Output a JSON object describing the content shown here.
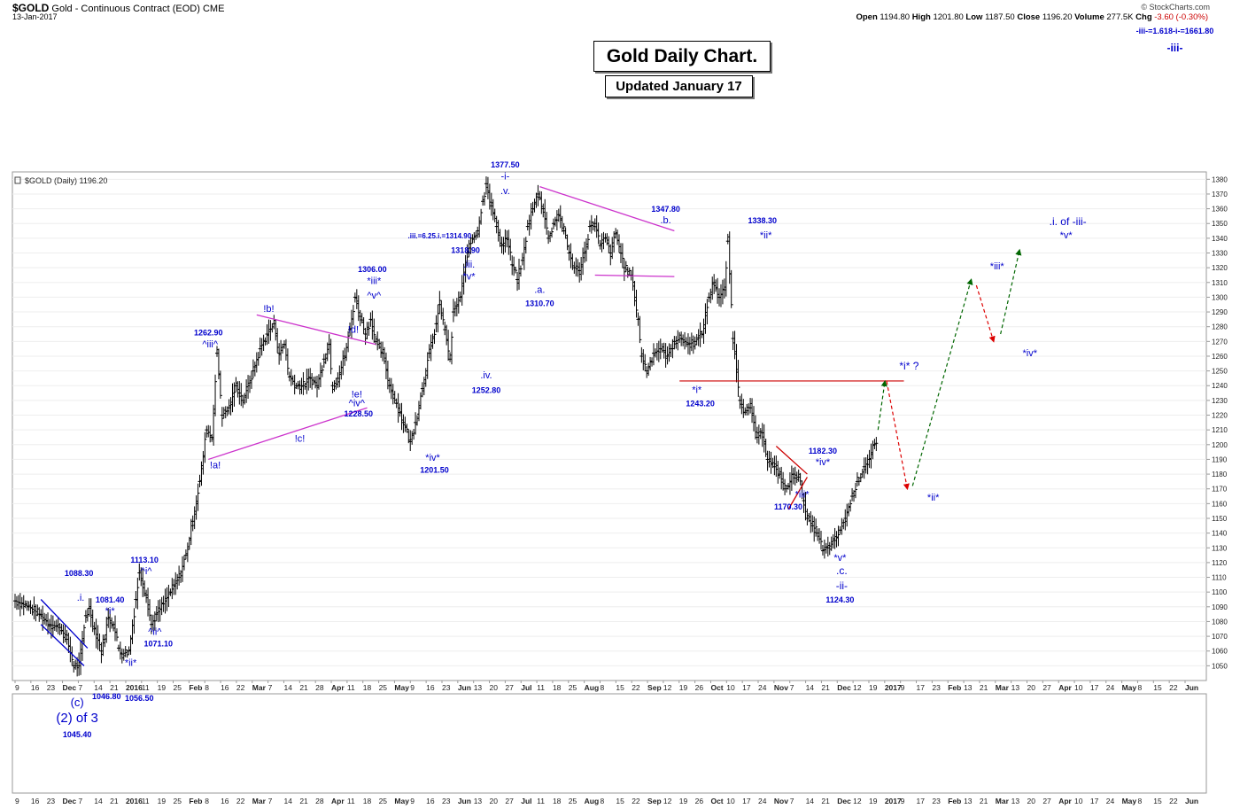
{
  "header": {
    "symbol": "$GOLD",
    "description": "Gold - Continuous Contract (EOD)",
    "exchange": "CME",
    "date": "13-Jan-2017",
    "brand": "© StockCharts.com",
    "open_label": "Open",
    "open": "1194.80",
    "high_label": "High",
    "high": "1201.80",
    "low_label": "Low",
    "low": "1187.50",
    "close_label": "Close",
    "close": "1196.20",
    "volume_label": "Volume",
    "volume": "277.5K",
    "chg_label": "Chg",
    "chg": "-3.60 (-0.30%)"
  },
  "titles": {
    "main": "Gold Daily Chart.",
    "sub": "Updated January 17"
  },
  "chart_data": {
    "type": "ohlc",
    "legend": "$GOLD (Daily) 1196.20",
    "y_range": [
      1040,
      1385
    ],
    "y_ticks": [
      1050,
      1060,
      1070,
      1080,
      1090,
      1100,
      1110,
      1120,
      1130,
      1140,
      1150,
      1160,
      1170,
      1180,
      1190,
      1200,
      1210,
      1220,
      1230,
      1240,
      1250,
      1260,
      1270,
      1280,
      1290,
      1300,
      1310,
      1320,
      1330,
      1340,
      1350,
      1360,
      1370,
      1380
    ],
    "x_ticks": [
      "9",
      "16",
      "23",
      "Dec",
      "7",
      "14",
      "21",
      "2016",
      "11",
      "19",
      "25",
      "Feb",
      "8",
      "16",
      "22",
      "Mar",
      "7",
      "14",
      "21",
      "28",
      "Apr",
      "11",
      "18",
      "25",
      "May",
      "9",
      "16",
      "23",
      "Jun",
      "13",
      "20",
      "27",
      "Jul",
      "11",
      "18",
      "25",
      "Aug",
      "8",
      "15",
      "22",
      "Sep",
      "12",
      "19",
      "26",
      "Oct",
      "10",
      "17",
      "24",
      "Nov",
      "7",
      "14",
      "21",
      "Dec",
      "12",
      "19",
      "2017",
      "9",
      "17",
      "23",
      "Feb",
      "13",
      "21",
      "Mar",
      "13",
      "20",
      "27",
      "Apr",
      "10",
      "17",
      "24",
      "May",
      "8",
      "15",
      "22",
      "Jun"
    ],
    "x_ticks_bold": [
      "Dec",
      "2016",
      "Feb",
      "Mar",
      "Apr",
      "May",
      "Jun",
      "Jul",
      "Aug",
      "Sep",
      "Oct",
      "Nov",
      "2017"
    ],
    "price_path": [
      [
        0,
        1094
      ],
      [
        8,
        1090
      ],
      [
        14,
        1085
      ],
      [
        20,
        1078
      ],
      [
        26,
        1076
      ],
      [
        30,
        1068
      ],
      [
        34,
        1050
      ],
      [
        37,
        1050
      ],
      [
        41,
        1084
      ],
      [
        43,
        1089
      ],
      [
        46,
        1075
      ],
      [
        50,
        1060
      ],
      [
        54,
        1082
      ],
      [
        57,
        1078
      ],
      [
        60,
        1062
      ],
      [
        62,
        1058
      ],
      [
        66,
        1060
      ],
      [
        70,
        1095
      ],
      [
        72,
        1113
      ],
      [
        76,
        1098
      ],
      [
        79,
        1078
      ],
      [
        82,
        1085
      ],
      [
        86,
        1092
      ],
      [
        90,
        1100
      ],
      [
        95,
        1110
      ],
      [
        99,
        1125
      ],
      [
        103,
        1148
      ],
      [
        107,
        1175
      ],
      [
        111,
        1210
      ],
      [
        114,
        1205
      ],
      [
        117,
        1262
      ],
      [
        120,
        1220
      ],
      [
        124,
        1225
      ],
      [
        128,
        1240
      ],
      [
        132,
        1230
      ],
      [
        138,
        1250
      ],
      [
        142,
        1265
      ],
      [
        146,
        1275
      ],
      [
        150,
        1282
      ],
      [
        153,
        1262
      ],
      [
        156,
        1268
      ],
      [
        159,
        1246
      ],
      [
        163,
        1240
      ],
      [
        167,
        1240
      ],
      [
        171,
        1245
      ],
      [
        175,
        1240
      ],
      [
        179,
        1258
      ],
      [
        182,
        1268
      ],
      [
        184,
        1240
      ],
      [
        187,
        1245
      ],
      [
        191,
        1260
      ],
      [
        194,
        1278
      ],
      [
        197,
        1300
      ],
      [
        200,
        1287
      ],
      [
        203,
        1275
      ],
      [
        206,
        1285
      ],
      [
        209,
        1270
      ],
      [
        213,
        1262
      ],
      [
        217,
        1240
      ],
      [
        221,
        1228
      ],
      [
        225,
        1215
      ],
      [
        229,
        1202
      ],
      [
        232,
        1215
      ],
      [
        236,
        1238
      ],
      [
        240,
        1262
      ],
      [
        244,
        1282
      ],
      [
        246,
        1295
      ],
      [
        249,
        1278
      ],
      [
        252,
        1258
      ],
      [
        254,
        1290
      ],
      [
        258,
        1300
      ],
      [
        262,
        1330
      ],
      [
        265,
        1340
      ],
      [
        268,
        1345
      ],
      [
        271,
        1365
      ],
      [
        273,
        1377
      ],
      [
        276,
        1362
      ],
      [
        279,
        1348
      ],
      [
        282,
        1335
      ],
      [
        285,
        1340
      ],
      [
        288,
        1322
      ],
      [
        291,
        1312
      ],
      [
        294,
        1325
      ],
      [
        297,
        1348
      ],
      [
        300,
        1360
      ],
      [
        303,
        1370
      ],
      [
        306,
        1360
      ],
      [
        309,
        1340
      ],
      [
        312,
        1350
      ],
      [
        315,
        1356
      ],
      [
        318,
        1345
      ],
      [
        321,
        1330
      ],
      [
        324,
        1320
      ],
      [
        327,
        1318
      ],
      [
        330,
        1330
      ],
      [
        333,
        1348
      ],
      [
        336,
        1350
      ],
      [
        339,
        1335
      ],
      [
        342,
        1340
      ],
      [
        345,
        1330
      ],
      [
        348,
        1343
      ],
      [
        351,
        1330
      ],
      [
        353,
        1320
      ],
      [
        357,
        1315
      ],
      [
        361,
        1285
      ],
      [
        363,
        1260
      ],
      [
        366,
        1250
      ],
      [
        370,
        1262
      ],
      [
        374,
        1265
      ],
      [
        378,
        1260
      ],
      [
        382,
        1270
      ],
      [
        386,
        1272
      ],
      [
        390,
        1268
      ],
      [
        394,
        1270
      ],
      [
        398,
        1275
      ],
      [
        402,
        1300
      ],
      [
        405,
        1310
      ],
      [
        408,
        1300
      ],
      [
        411,
        1305
      ],
      [
        413,
        1338
      ],
      [
        416,
        1272
      ],
      [
        420,
        1230
      ],
      [
        423,
        1222
      ],
      [
        426,
        1225
      ],
      [
        430,
        1205
      ],
      [
        433,
        1208
      ],
      [
        436,
        1190
      ],
      [
        440,
        1185
      ],
      [
        443,
        1180
      ],
      [
        446,
        1170
      ],
      [
        448,
        1172
      ],
      [
        451,
        1180
      ],
      [
        454,
        1178
      ],
      [
        457,
        1162
      ],
      [
        459,
        1150
      ],
      [
        462,
        1145
      ],
      [
        465,
        1140
      ],
      [
        468,
        1128
      ],
      [
        471,
        1130
      ],
      [
        475,
        1135
      ],
      [
        478,
        1142
      ],
      [
        481,
        1150
      ],
      [
        485,
        1165
      ],
      [
        488,
        1175
      ],
      [
        492,
        1185
      ],
      [
        495,
        1190
      ],
      [
        498,
        1200
      ],
      [
        500,
        1196
      ]
    ],
    "forecast_path": [
      {
        "from": [
          500,
          1210
        ],
        "to": [
          504,
          1243
        ],
        "color": "#006600"
      },
      {
        "from": [
          505,
          1243
        ],
        "to": [
          517,
          1170
        ],
        "color": "#dd0000"
      },
      {
        "from": [
          520,
          1172
        ],
        "to": [
          554,
          1312
        ],
        "color": "#006600"
      },
      {
        "from": [
          557,
          1308
        ],
        "to": [
          567,
          1270
        ],
        "color": "#dd0000"
      },
      {
        "from": [
          571,
          1275
        ],
        "to": [
          582,
          1332
        ],
        "color": "#006600"
      }
    ],
    "trendlines": [
      {
        "from": [
          112,
          1190
        ],
        "to": [
          204,
          1225
        ],
        "color": "#cc33cc"
      },
      {
        "from": [
          140,
          1288
        ],
        "to": [
          209,
          1268
        ],
        "color": "#cc33cc"
      },
      {
        "from": [
          304,
          1375
        ],
        "to": [
          382,
          1345
        ],
        "color": "#cc33cc"
      },
      {
        "from": [
          336,
          1315
        ],
        "to": [
          382,
          1314
        ],
        "color": "#cc33cc"
      },
      {
        "from": [
          441,
          1199
        ],
        "to": [
          459,
          1180
        ],
        "color": "#cc0000"
      },
      {
        "from": [
          448,
          1156
        ],
        "to": [
          459,
          1178
        ],
        "color": "#cc0000"
      },
      {
        "from": [
          15,
          1078
        ],
        "to": [
          40,
          1050
        ],
        "color": "#0000cc"
      },
      {
        "from": [
          15,
          1095
        ],
        "to": [
          42,
          1062
        ],
        "color": "#0000cc"
      }
    ],
    "resistance_line": {
      "value": 1243.2,
      "from": 385,
      "to": 515,
      "color": "#cc0000"
    },
    "annotations": [
      {
        "t": "1088.30",
        "x": 37,
        "p": 1111,
        "b": true,
        "s": 9
      },
      {
        "t": ".i.",
        "x": 38,
        "p": 1094,
        "s": 11
      },
      {
        "t": "1081.40",
        "x": 55,
        "p": 1093,
        "b": true,
        "s": 9
      },
      {
        "t": "*i*",
        "x": 55,
        "p": 1085,
        "s": 11
      },
      {
        "t": "1113.10",
        "x": 75,
        "p": 1120,
        "b": true,
        "s": 9
      },
      {
        "t": "^i^",
        "x": 76,
        "p": 1112,
        "s": 11
      },
      {
        "t": "^ii^",
        "x": 81,
        "p": 1071,
        "s": 11
      },
      {
        "t": "1071.10",
        "x": 83,
        "p": 1063,
        "b": true,
        "s": 9
      },
      {
        "t": "*ii*",
        "x": 67,
        "p": 1050,
        "s": 11
      },
      {
        "t": "1262.90",
        "x": 112,
        "p": 1274,
        "b": true,
        "s": 9
      },
      {
        "t": "^iii^",
        "x": 113,
        "p": 1266,
        "s": 11
      },
      {
        "t": "!a!",
        "x": 116,
        "p": 1184,
        "s": 11
      },
      {
        "t": "!b!",
        "x": 147,
        "p": 1290,
        "s": 11
      },
      {
        "t": "!c!",
        "x": 165,
        "p": 1202,
        "s": 11
      },
      {
        "t": "!d!",
        "x": 196,
        "p": 1276,
        "s": 11
      },
      {
        "t": "!e!",
        "x": 198,
        "p": 1232,
        "s": 11
      },
      {
        "t": "^iv^",
        "x": 198,
        "p": 1226,
        "s": 11
      },
      {
        "t": "1228.50",
        "x": 199,
        "p": 1219,
        "b": true,
        "s": 9
      },
      {
        "t": "1306.00",
        "x": 207,
        "p": 1317,
        "b": true,
        "s": 9
      },
      {
        "t": "*iii*",
        "x": 208,
        "p": 1309,
        "s": 11
      },
      {
        "t": "^v^",
        "x": 208,
        "p": 1299,
        "s": 11
      },
      {
        "t": "*iv*",
        "x": 242,
        "p": 1189,
        "s": 11
      },
      {
        "t": "1201.50",
        "x": 243,
        "p": 1181,
        "b": true,
        "s": 9
      },
      {
        "t": ".iii.=6.25.i.=1314.90",
        "x": 246,
        "p": 1340,
        "b": true,
        "s": 8
      },
      {
        "t": "1318.90",
        "x": 261,
        "p": 1330,
        "b": true,
        "s": 9
      },
      {
        "t": ".iii.",
        "x": 263,
        "p": 1320,
        "s": 11
      },
      {
        "t": "*v*",
        "x": 263,
        "p": 1312,
        "s": 11
      },
      {
        "t": ".iv.",
        "x": 273,
        "p": 1245,
        "s": 11
      },
      {
        "t": "1252.80",
        "x": 273,
        "p": 1235,
        "b": true,
        "s": 9
      },
      {
        "t": "1377.50",
        "x": 284,
        "p": 1388,
        "b": true,
        "s": 9
      },
      {
        "t": "-i-",
        "x": 284,
        "p": 1380,
        "s": 11
      },
      {
        "t": ".v.",
        "x": 284,
        "p": 1370,
        "s": 11
      },
      {
        "t": ".a.",
        "x": 304,
        "p": 1303,
        "s": 11
      },
      {
        "t": "1310.70",
        "x": 304,
        "p": 1294,
        "b": true,
        "s": 9
      },
      {
        "t": "1347.80",
        "x": 377,
        "p": 1358,
        "b": true,
        "s": 9
      },
      {
        "t": ".b.",
        "x": 377,
        "p": 1350,
        "s": 11
      },
      {
        "t": "*i*",
        "x": 395,
        "p": 1235,
        "s": 11
      },
      {
        "t": "1243.20",
        "x": 397,
        "p": 1226,
        "b": true,
        "s": 9
      },
      {
        "t": "1338.30",
        "x": 433,
        "p": 1350,
        "b": true,
        "s": 9
      },
      {
        "t": "*ii*",
        "x": 435,
        "p": 1340,
        "s": 11
      },
      {
        "t": "1182.30",
        "x": 468,
        "p": 1194,
        "b": true,
        "s": 9
      },
      {
        "t": "*iv*",
        "x": 468,
        "p": 1186,
        "s": 11
      },
      {
        "t": "*iii*",
        "x": 456,
        "p": 1164,
        "s": 11
      },
      {
        "t": "1170.30",
        "x": 448,
        "p": 1156,
        "b": true,
        "s": 9
      },
      {
        "t": "*v*",
        "x": 478,
        "p": 1121,
        "s": 11
      },
      {
        "t": ".c.",
        "x": 479,
        "p": 1112,
        "s": 12
      },
      {
        "t": "-ii-",
        "x": 479,
        "p": 1102,
        "s": 12
      },
      {
        "t": "1124.30",
        "x": 478,
        "p": 1093,
        "b": true,
        "s": 9
      },
      {
        "t": "*i*  ?",
        "x": 518,
        "p": 1251,
        "s": 12
      },
      {
        "t": "*ii*",
        "x": 532,
        "p": 1162,
        "s": 11
      },
      {
        "t": "*iii*",
        "x": 569,
        "p": 1319,
        "s": 11
      },
      {
        "t": "*iv*",
        "x": 588,
        "p": 1260,
        "s": 11
      },
      {
        "t": ".i. of -iii-",
        "x": 610,
        "p": 1349,
        "s": 12
      },
      {
        "t": "*v*",
        "x": 609,
        "p": 1340,
        "s": 11
      }
    ],
    "lower_annotations": [
      {
        "t": "(c)",
        "x": 36,
        "y": 797,
        "s": 13
      },
      {
        "t": "(2) of 3",
        "x": 36,
        "y": 815,
        "s": 15
      },
      {
        "t": "1045.40",
        "x": 36,
        "y": 832,
        "b": true,
        "s": 9
      },
      {
        "t": "1046.80",
        "x": 53,
        "y": 789,
        "b": true,
        "s": 9
      },
      {
        "t": "1056.50",
        "x": 72,
        "y": 791,
        "b": true,
        "s": 9
      },
      {
        "t": "-iii-=1.618-i-=1661.80",
        "x": 672,
        "y": 38,
        "b": true,
        "s": 9
      },
      {
        "t": "-iii-",
        "x": 672,
        "y": 58,
        "b": true,
        "s": 12
      }
    ]
  }
}
